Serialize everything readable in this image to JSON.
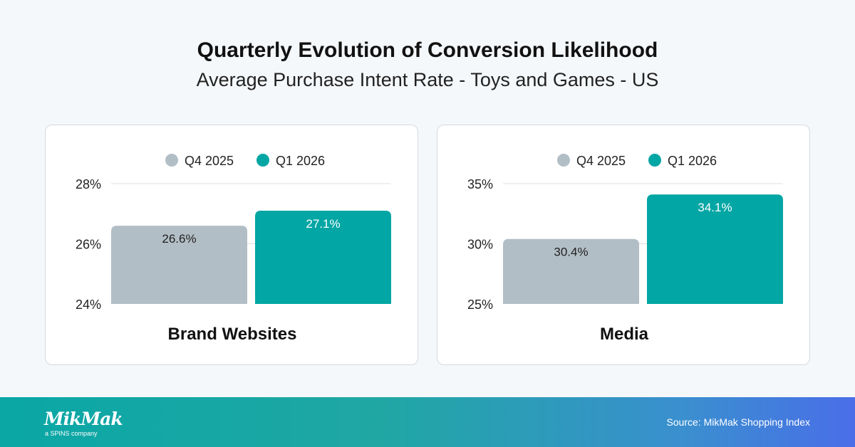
{
  "title": "Quarterly Evolution of Conversion Likelihood",
  "subtitle": "Average Purchase Intent Rate - Toys and Games - US",
  "colors": {
    "Q4 2025": "#b2bec6",
    "Q1 2026": "#02a6a4"
  },
  "chart_data": [
    {
      "type": "bar",
      "title": "Brand Websites",
      "categories": [
        "Q4 2025",
        "Q1 2026"
      ],
      "values": [
        26.6,
        27.1
      ],
      "labels": [
        "26.6%",
        "27.1%"
      ],
      "ylim": [
        24,
        28
      ],
      "yticks": [
        24,
        26,
        28
      ],
      "ytick_labels": [
        "24%",
        "26%",
        "28%"
      ],
      "legend": [
        "Q4 2025",
        "Q1 2026"
      ],
      "legend_position": "top",
      "grid": true
    },
    {
      "type": "bar",
      "title": "Media",
      "categories": [
        "Q4 2025",
        "Q1 2026"
      ],
      "values": [
        30.4,
        34.1
      ],
      "labels": [
        "30.4%",
        "34.1%"
      ],
      "ylim": [
        25,
        35
      ],
      "yticks": [
        25,
        30,
        35
      ],
      "ytick_labels": [
        "25%",
        "30%",
        "35%"
      ],
      "legend": [
        "Q4 2025",
        "Q1 2026"
      ],
      "legend_position": "top",
      "grid": true
    }
  ],
  "footer": {
    "logo": "MikMak",
    "logo_sub": "a SPINS company",
    "source": "Source: MikMak Shopping Index"
  }
}
